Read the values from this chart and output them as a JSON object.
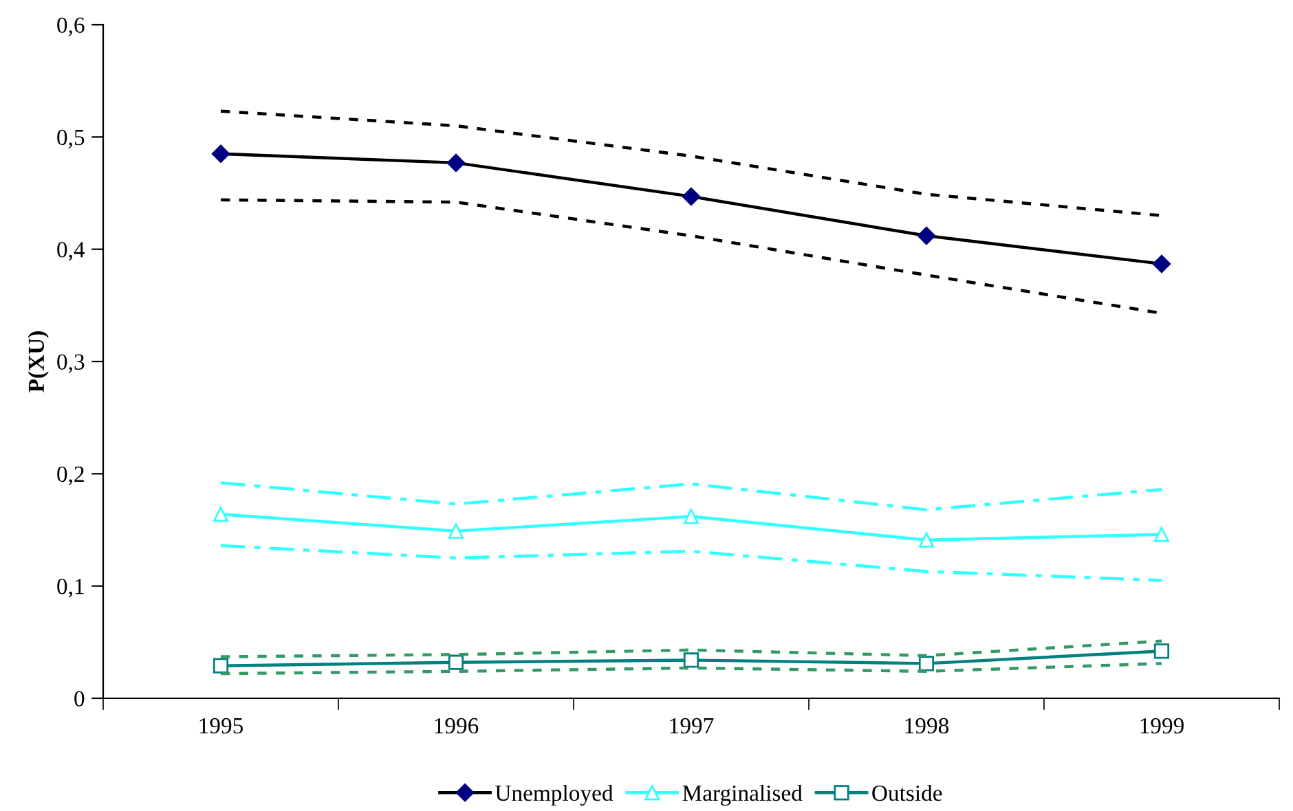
{
  "chart_data": {
    "type": "line",
    "ylabel": "P(XU)",
    "categories": [
      "1995",
      "1996",
      "1997",
      "1998",
      "1999"
    ],
    "ylim": [
      0,
      0.6
    ],
    "yticks": [
      {
        "value": 0,
        "label": "0"
      },
      {
        "value": 0.1,
        "label": "0,1"
      },
      {
        "value": 0.2,
        "label": "0,2"
      },
      {
        "value": 0.3,
        "label": "0,3"
      },
      {
        "value": 0.4,
        "label": "0,4"
      },
      {
        "value": 0.5,
        "label": "0,5"
      },
      {
        "value": 0.6,
        "label": "0,6"
      }
    ],
    "grid": false,
    "legend": "bottom",
    "series": [
      {
        "name": "Unemployed",
        "color": "#000080",
        "marker": "diamond",
        "line_style": "solid",
        "values": [
          0.485,
          0.477,
          0.447,
          0.412,
          0.387
        ]
      },
      {
        "color": "#000000",
        "marker": "none",
        "line_style": "dotted",
        "values": [
          0.523,
          0.51,
          0.483,
          0.449,
          0.43
        ]
      },
      {
        "color": "#000000",
        "marker": "none",
        "line_style": "dotted",
        "values": [
          0.444,
          0.442,
          0.412,
          0.377,
          0.343
        ]
      },
      {
        "name": "Marginalised",
        "color": "#33ffff",
        "marker": "triangle",
        "line_style": "solid",
        "values": [
          0.164,
          0.149,
          0.162,
          0.141,
          0.146
        ]
      },
      {
        "color": "#33ffff",
        "marker": "none",
        "line_style": "dashed",
        "values": [
          0.192,
          0.173,
          0.191,
          0.168,
          0.186
        ]
      },
      {
        "color": "#33ffff",
        "marker": "none",
        "line_style": "dashed",
        "values": [
          0.136,
          0.125,
          0.131,
          0.113,
          0.105
        ]
      },
      {
        "name": "Outside",
        "color": "#008080",
        "marker": "square",
        "line_style": "solid",
        "values": [
          0.029,
          0.032,
          0.034,
          0.031,
          0.042
        ]
      },
      {
        "color": "#339966",
        "marker": "none",
        "line_style": "dotted",
        "values": [
          0.037,
          0.039,
          0.043,
          0.038,
          0.051
        ]
      },
      {
        "color": "#339966",
        "marker": "none",
        "line_style": "dotted",
        "values": [
          0.022,
          0.024,
          0.027,
          0.024,
          0.031
        ]
      }
    ]
  }
}
